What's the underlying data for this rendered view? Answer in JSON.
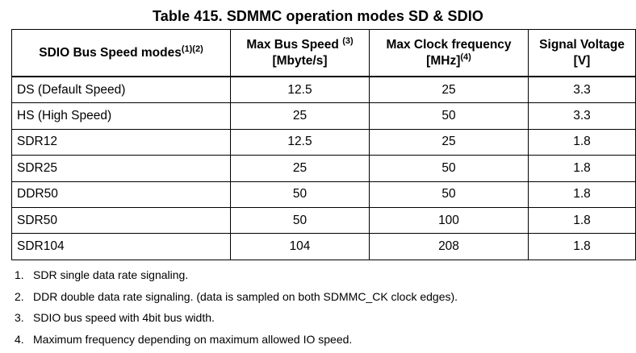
{
  "title": "Table 415. SDMMC operation modes SD & SDIO",
  "table": {
    "headers": [
      {
        "line1": "SDIO Bus Speed modes",
        "sup1": "(1)(2)",
        "line2": "",
        "sup2": ""
      },
      {
        "line1": "Max Bus Speed ",
        "sup1": "(3)",
        "line2": "[Mbyte/s]",
        "sup2": ""
      },
      {
        "line1": "Max Clock frequency",
        "sup1": "",
        "line2": "[MHz]",
        "sup2": "(4)"
      },
      {
        "line1": "Signal Voltage",
        "sup1": "",
        "line2": "[V]",
        "sup2": ""
      }
    ],
    "rows": [
      [
        "DS (Default Speed)",
        "12.5",
        "25",
        "3.3"
      ],
      [
        "HS (High Speed)",
        "25",
        "50",
        "3.3"
      ],
      [
        "SDR12",
        "12.5",
        "25",
        "1.8"
      ],
      [
        "SDR25",
        "25",
        "50",
        "1.8"
      ],
      [
        "DDR50",
        "50",
        "50",
        "1.8"
      ],
      [
        "SDR50",
        "50",
        "100",
        "1.8"
      ],
      [
        "SDR104",
        "104",
        "208",
        "1.8"
      ]
    ]
  },
  "notes": [
    {
      "num": "1.",
      "text": "SDR single data rate signaling."
    },
    {
      "num": "2.",
      "text": "DDR double data rate signaling. (data is sampled on both SDMMC_CK clock edges)."
    },
    {
      "num": "3.",
      "text": "SDIO bus speed with 4bit bus width."
    },
    {
      "num": "4.",
      "text": "Maximum frequency depending on maximum allowed IO speed."
    }
  ]
}
